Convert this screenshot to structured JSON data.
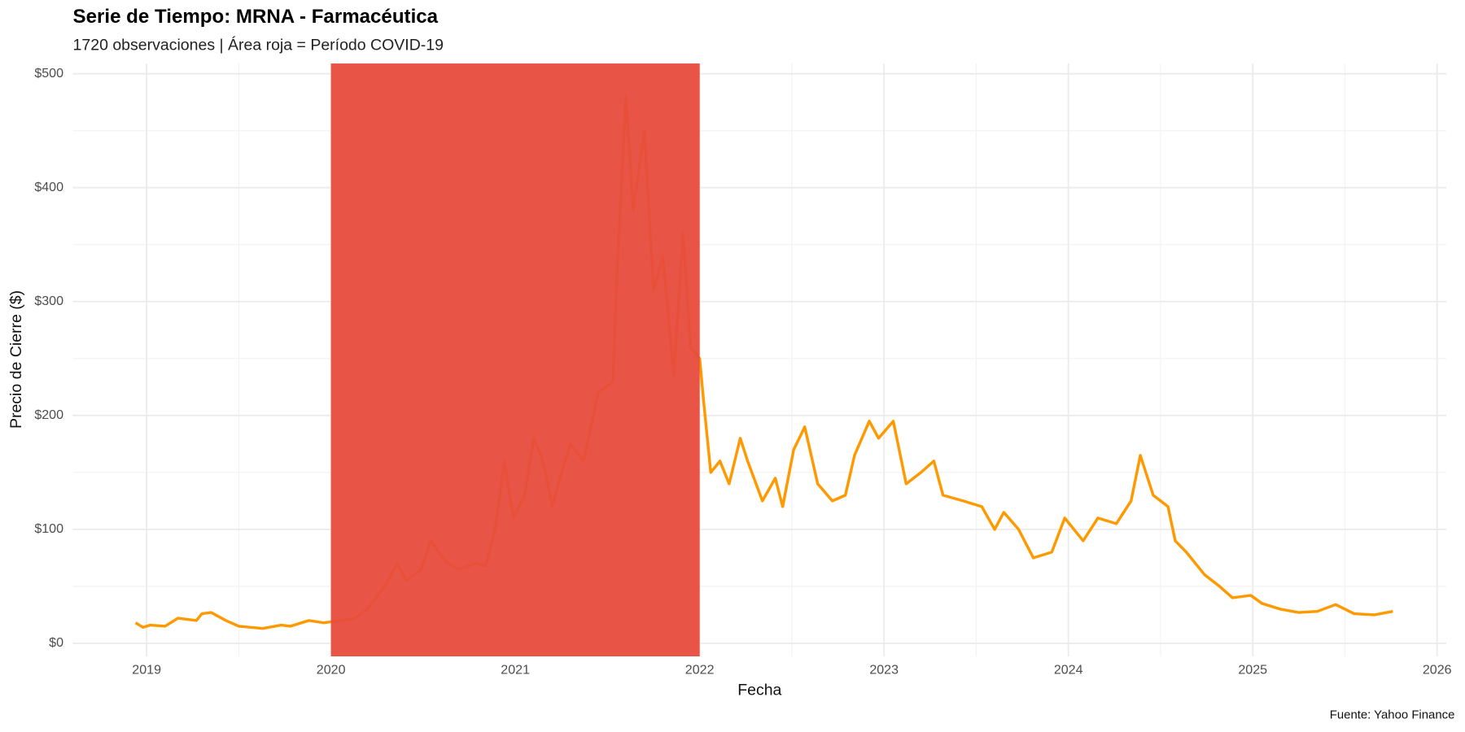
{
  "chart_data": {
    "type": "line",
    "title": "Serie de Tiempo: MRNA - Farmacéutica",
    "subtitle": "1720 observaciones | Área roja = Período COVID-19",
    "x_label": "Fecha",
    "y_label": "Precio de Cierre ($)",
    "caption": "Fuente: Yahoo Finance",
    "color": "#ff9900",
    "shade": {
      "x": [
        2020,
        2022
      ],
      "color": "#e74c3c",
      "opacity": 0.95
    },
    "x": [
      2018.94,
      2018.98,
      2019.02,
      2019.1,
      2019.17,
      2019.27,
      2019.3,
      2019.35,
      2019.43,
      2019.5,
      2019.63,
      2019.73,
      2019.78,
      2019.88,
      2019.96,
      2020.06,
      2020.13,
      2020.2,
      2020.29,
      2020.36,
      2020.41,
      2020.49,
      2020.54,
      2020.62,
      2020.69,
      2020.79,
      2020.84,
      2020.89,
      2020.94,
      2020.99,
      2021.05,
      2021.1,
      2021.15,
      2021.2,
      2021.25,
      2021.3,
      2021.37,
      2021.45,
      2021.53,
      2021.55,
      2021.6,
      2021.64,
      2021.7,
      2021.75,
      2021.8,
      2021.86,
      2021.91,
      2021.95,
      2022.0,
      2022.02,
      2022.06,
      2022.11,
      2022.16,
      2022.22,
      2022.26,
      2022.34,
      2022.41,
      2022.45,
      2022.51,
      2022.57,
      2022.64,
      2022.72,
      2022.79,
      2022.84,
      2022.92,
      2022.97,
      2023.05,
      2023.12,
      2023.2,
      2023.27,
      2023.32,
      2023.43,
      2023.53,
      2023.6,
      2023.65,
      2023.73,
      2023.81,
      2023.91,
      2023.98,
      2024.08,
      2024.16,
      2024.26,
      2024.34,
      2024.39,
      2024.46,
      2024.54,
      2024.58,
      2024.64,
      2024.74,
      2024.82,
      2024.89,
      2024.99,
      2025.05,
      2025.15,
      2025.25,
      2025.35,
      2025.45,
      2025.55,
      2025.66,
      2025.76
    ],
    "values": [
      18,
      14,
      16,
      15,
      22,
      20,
      26,
      27,
      20,
      15,
      13,
      16,
      15,
      20,
      18,
      20,
      22,
      30,
      50,
      70,
      55,
      65,
      90,
      72,
      65,
      70,
      68,
      100,
      160,
      110,
      130,
      180,
      160,
      120,
      150,
      175,
      160,
      220,
      230,
      320,
      480,
      380,
      450,
      310,
      340,
      235,
      360,
      260,
      250,
      215,
      150,
      160,
      140,
      180,
      160,
      125,
      145,
      120,
      170,
      190,
      140,
      125,
      130,
      165,
      195,
      180,
      195,
      140,
      150,
      160,
      130,
      125,
      120,
      100,
      115,
      100,
      75,
      80,
      110,
      90,
      110,
      105,
      125,
      165,
      130,
      120,
      90,
      80,
      60,
      50,
      40,
      42,
      35,
      30,
      27,
      28,
      34,
      26,
      25,
      28
    ],
    "xlim": [
      2018.6,
      2026.05
    ],
    "xticks": [
      2019,
      2020,
      2021,
      2022,
      2023,
      2024,
      2025,
      2026
    ],
    "ylim": [
      -11.5,
      509
    ],
    "yticks": [
      {
        "value": 0,
        "label": "$0"
      },
      {
        "value": 100,
        "label": "$100"
      },
      {
        "value": 200,
        "label": "$200"
      },
      {
        "value": 300,
        "label": "$300"
      },
      {
        "value": 400,
        "label": "$400"
      },
      {
        "value": 500,
        "label": "$500"
      }
    ],
    "grid": true,
    "minor_grid": true
  }
}
